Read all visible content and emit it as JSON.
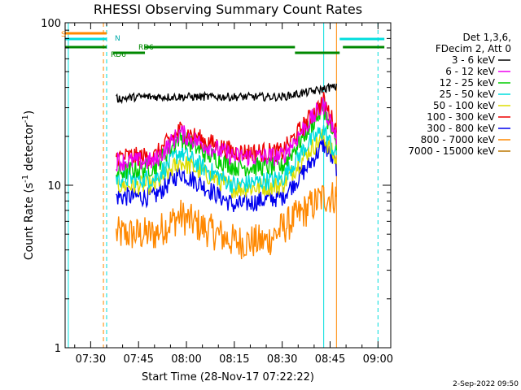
{
  "chart_data": {
    "type": "line",
    "title": "RHESSI Observing Summary Count Rates",
    "xlabel": "Start Time (28-Nov-17 07:22:22)",
    "ylabel": "Count Rate (s",
    "ylabel_sup1": "-1",
    "ylabel_mid": " detector",
    "ylabel_sup2": "-1",
    "ylabel_end": ")",
    "y_scale": "log",
    "ylim": [
      1,
      100
    ],
    "xlim": [
      "07:22",
      "09:04"
    ],
    "x_ticks": [
      "07:30",
      "07:45",
      "08:00",
      "08:15",
      "08:30",
      "08:45",
      "09:00"
    ],
    "y_ticks": [
      "1",
      "10",
      "100"
    ],
    "legend": {
      "header1": "Det 1,3,6,",
      "header2": "FDecim 2, Att 0",
      "placement": "right"
    },
    "series": [
      {
        "name": "3 - 6 keV",
        "color": "#000000",
        "x": [
          "07:38",
          "07:45",
          "08:00",
          "08:15",
          "08:30",
          "08:40",
          "08:45",
          "08:47"
        ],
        "values": [
          34,
          35,
          35,
          35,
          35,
          38,
          40,
          40
        ]
      },
      {
        "name": "6 - 12 keV",
        "color": "#ee00ee",
        "x": [
          "07:38",
          "07:50",
          "07:58",
          "08:05",
          "08:15",
          "08:30",
          "08:38",
          "08:43",
          "08:47"
        ],
        "values": [
          14,
          14,
          21,
          18,
          15,
          15,
          24,
          31,
          20
        ]
      },
      {
        "name": "12 - 25 keV",
        "color": "#00cc00",
        "x": [
          "07:38",
          "07:50",
          "07:58",
          "08:05",
          "08:15",
          "08:30",
          "08:38",
          "08:43",
          "08:47"
        ],
        "values": [
          12,
          13,
          20,
          16,
          13,
          13,
          22,
          30,
          17
        ]
      },
      {
        "name": "25 - 50 keV",
        "color": "#00dddd",
        "x": [
          "07:38",
          "07:50",
          "07:58",
          "08:05",
          "08:15",
          "08:30",
          "08:38",
          "08:43",
          "08:47"
        ],
        "values": [
          11,
          11,
          16,
          13,
          10,
          11,
          18,
          22,
          15
        ]
      },
      {
        "name": "50 - 100 keV",
        "color": "#dddd00",
        "x": [
          "07:38",
          "07:50",
          "07:58",
          "08:05",
          "08:15",
          "08:30",
          "08:38",
          "08:43",
          "08:47"
        ],
        "values": [
          10,
          10,
          14,
          12,
          9.5,
          10,
          16,
          20,
          14
        ]
      },
      {
        "name": "100 - 300 keV",
        "color": "#ee0000",
        "x": [
          "07:38",
          "07:50",
          "07:58",
          "08:05",
          "08:15",
          "08:30",
          "08:38",
          "08:43",
          "08:47"
        ],
        "values": [
          15,
          15,
          22,
          19,
          16,
          16,
          25,
          33,
          22
        ]
      },
      {
        "name": "300 - 800 keV",
        "color": "#0000ee",
        "x": [
          "07:38",
          "07:50",
          "07:58",
          "08:05",
          "08:15",
          "08:30",
          "08:38",
          "08:43",
          "08:47"
        ],
        "values": [
          8.5,
          8.5,
          12,
          10,
          7.5,
          8.5,
          13,
          18,
          13
        ]
      },
      {
        "name": "800 - 7000 keV",
        "color": "#ff8800",
        "x": [
          "07:38",
          "07:50",
          "07:58",
          "08:05",
          "08:15",
          "08:25",
          "08:35",
          "08:43",
          "08:47"
        ],
        "values": [
          5,
          5,
          6.5,
          5.5,
          4.5,
          4.5,
          6.5,
          8.5,
          8.5
        ]
      },
      {
        "name": "7000 - 15000 keV",
        "color": "#bb7700",
        "x": [],
        "values": []
      }
    ],
    "attenuator_bars": [
      {
        "label": "S",
        "color": "#ff8800",
        "segments": [
          [
            "07:22",
            "07:35"
          ]
        ]
      },
      {
        "label": "N",
        "color": "#00dddd",
        "segments": [
          [
            "07:22",
            "07:35"
          ],
          [
            "08:48",
            "09:02"
          ]
        ]
      },
      {
        "label": "RD6",
        "color": "#008800",
        "segments": [
          [
            "07:22",
            "07:35"
          ],
          [
            "07:37",
            "07:47"
          ],
          [
            "07:47",
            "08:34"
          ],
          [
            "08:34",
            "08:48"
          ],
          [
            "08:49",
            "09:02"
          ]
        ]
      }
    ],
    "vertical_lines": [
      {
        "x": "07:23",
        "color": "#00dddd",
        "style": "solid"
      },
      {
        "x": "07:34",
        "color": "#ff8800",
        "style": "dashed"
      },
      {
        "x": "07:35",
        "color": "#00dddd",
        "style": "dashed"
      },
      {
        "x": "08:43",
        "color": "#00dddd",
        "style": "solid"
      },
      {
        "x": "08:47",
        "color": "#ff8800",
        "style": "solid"
      },
      {
        "x": "09:00",
        "color": "#00dddd",
        "style": "dashed"
      }
    ],
    "grid": false
  },
  "footer": {
    "date_stamp": "2-Sep-2022 09:50"
  },
  "bar_labels": {
    "s": "S",
    "n": "N",
    "rd6_a": "RD6",
    "rd6_b": "RD6"
  }
}
